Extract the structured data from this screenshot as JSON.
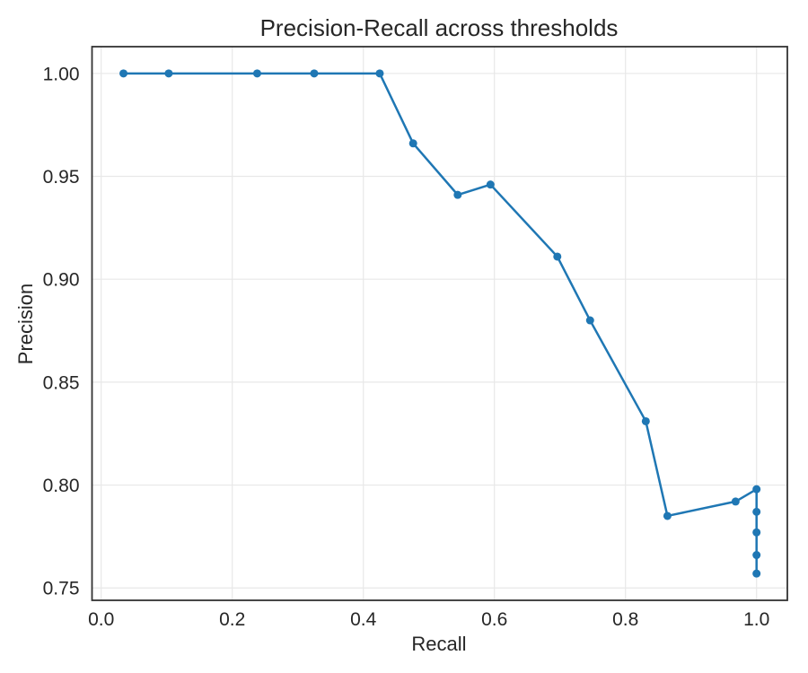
{
  "chart_data": {
    "type": "line",
    "title": "Precision-Recall across thresholds",
    "xlabel": "Recall",
    "ylabel": "Precision",
    "xlim": [
      -0.014,
      1.047
    ],
    "ylim": [
      0.744,
      1.013
    ],
    "grid": true,
    "legend": "none",
    "xticks": [
      {
        "value": 0.0,
        "label": "0.0"
      },
      {
        "value": 0.2,
        "label": "0.2"
      },
      {
        "value": 0.4,
        "label": "0.4"
      },
      {
        "value": 0.6,
        "label": "0.6"
      },
      {
        "value": 0.8,
        "label": "0.8"
      },
      {
        "value": 1.0,
        "label": "1.0"
      }
    ],
    "yticks": [
      {
        "value": 0.75,
        "label": "0.75"
      },
      {
        "value": 0.8,
        "label": "0.80"
      },
      {
        "value": 0.85,
        "label": "0.85"
      },
      {
        "value": 0.9,
        "label": "0.90"
      },
      {
        "value": 0.95,
        "label": "0.95"
      },
      {
        "value": 1.0,
        "label": "1.00"
      }
    ],
    "series": [
      {
        "name": "precision-recall-curve",
        "color": "#1f77b4",
        "marker": "circle",
        "points": [
          [
            0.034,
            1.0
          ],
          [
            0.103,
            1.0
          ],
          [
            0.238,
            1.0
          ],
          [
            0.325,
            1.0
          ],
          [
            0.425,
            1.0
          ],
          [
            0.476,
            0.966
          ],
          [
            0.544,
            0.941
          ],
          [
            0.594,
            0.946
          ],
          [
            0.696,
            0.911
          ],
          [
            0.746,
            0.88
          ],
          [
            0.831,
            0.831
          ],
          [
            0.864,
            0.785
          ],
          [
            0.968,
            0.792
          ],
          [
            1.0,
            0.798
          ],
          [
            1.0,
            0.787
          ],
          [
            1.0,
            0.777
          ],
          [
            1.0,
            0.766
          ],
          [
            1.0,
            0.757
          ]
        ]
      }
    ],
    "colors": {
      "background": "#ffffff",
      "line": "#1f77b4",
      "grid": "#e8e8e8",
      "spine": "#333333",
      "text": "#262626"
    }
  }
}
